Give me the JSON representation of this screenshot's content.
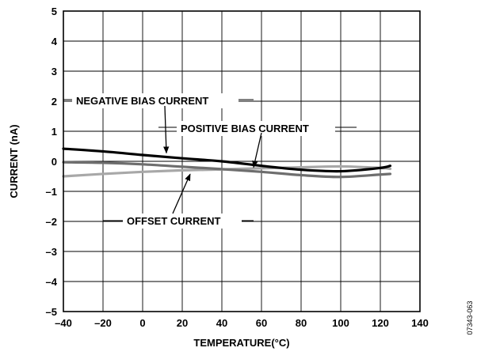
{
  "chart_data": {
    "type": "line",
    "title": "",
    "xlabel": "TEMPERATURE(°C)",
    "ylabel": "CURRENT (nA)",
    "xlim": [
      -40,
      140
    ],
    "ylim": [
      -5,
      5
    ],
    "x_ticks": [
      -40,
      -20,
      0,
      20,
      40,
      60,
      80,
      100,
      120,
      140
    ],
    "y_ticks": [
      5,
      4,
      3,
      2,
      1,
      0,
      -1,
      -2,
      -3,
      -4,
      -5
    ],
    "x_tick_labels": [
      "–40",
      "–20",
      "0",
      "20",
      "40",
      "60",
      "80",
      "100",
      "120",
      "140"
    ],
    "y_tick_labels": [
      "5",
      "4",
      "3",
      "2",
      "1",
      "0",
      "–1",
      "–2",
      "–3",
      "–4",
      "–5"
    ],
    "grid": true,
    "legend": "none",
    "series": [
      {
        "name": "NEGATIVE BIAS CURRENT",
        "color": "#000000",
        "x": [
          -40,
          -20,
          0,
          20,
          40,
          60,
          80,
          100,
          120,
          125
        ],
        "y": [
          0.42,
          0.33,
          0.21,
          0.1,
          0.0,
          -0.15,
          -0.28,
          -0.33,
          -0.22,
          -0.15
        ]
      },
      {
        "name": "POSITIVE BIAS CURRENT",
        "color": "#6e6e6e",
        "x": [
          -40,
          -20,
          0,
          20,
          40,
          60,
          80,
          100,
          120,
          125
        ],
        "y": [
          -0.03,
          -0.05,
          -0.1,
          -0.18,
          -0.26,
          -0.35,
          -0.46,
          -0.52,
          -0.44,
          -0.42
        ]
      },
      {
        "name": "OFFSET CURRENT",
        "color": "#a8a8a8",
        "x": [
          -40,
          -20,
          0,
          20,
          40,
          60,
          80,
          100,
          120,
          125
        ],
        "y": [
          -0.5,
          -0.42,
          -0.35,
          -0.3,
          -0.27,
          -0.23,
          -0.2,
          -0.17,
          -0.22,
          -0.25
        ]
      }
    ],
    "annotations": [
      {
        "text": "NEGATIVE BIAS CURRENT",
        "points_to_series": 0
      },
      {
        "text": "POSITIVE BIAS CURRENT",
        "points_to_series": 1
      },
      {
        "text": "OFFSET CURRENT",
        "points_to_series": 2
      }
    ]
  },
  "figure_id": "07343-063"
}
